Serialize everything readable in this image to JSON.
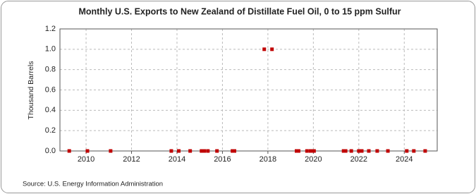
{
  "chart_data": {
    "type": "scatter",
    "title": "Monthly U.S. Exports to New Zealand of Distillate Fuel Oil, 0 to 15 ppm Sulfur",
    "y_label": "Thousand Barrels",
    "source": "Source: U.S. Energy Information Administration",
    "color": "#c00000",
    "grid": true,
    "x": [
      2009.26,
      2010.06,
      2011.08,
      2013.75,
      2014.08,
      2014.58,
      2015.08,
      2015.2,
      2015.36,
      2015.76,
      2016.44,
      2016.53,
      2017.84,
      2018.18,
      2019.26,
      2019.35,
      2019.72,
      2019.88,
      2020.03,
      2021.33,
      2021.42,
      2021.67,
      2022.0,
      2022.13,
      2022.44,
      2022.81,
      2023.28,
      2024.11,
      2024.42,
      2024.92
    ],
    "values": [
      0,
      0,
      0,
      0,
      0,
      0,
      0,
      0,
      0,
      0,
      0,
      0,
      1,
      1,
      0,
      0,
      0,
      0,
      0,
      0,
      0,
      0,
      0,
      0,
      0,
      0,
      0,
      0,
      0,
      0
    ],
    "xlim": [
      2008.85,
      2025.45
    ],
    "xticks": [
      2010,
      2012,
      2014,
      2016,
      2018,
      2020,
      2022,
      2024
    ],
    "ylim": [
      0,
      1.2
    ],
    "yticks": [
      {
        "value": 0,
        "label": "0.0"
      },
      {
        "value": 0.2,
        "label": "0.2"
      },
      {
        "value": 0.4,
        "label": "0.4"
      },
      {
        "value": 0.6,
        "label": "0.6"
      },
      {
        "value": 0.8,
        "label": "0.8"
      },
      {
        "value": 1,
        "label": "1.0"
      },
      {
        "value": 1.2,
        "label": "1.2"
      }
    ]
  }
}
